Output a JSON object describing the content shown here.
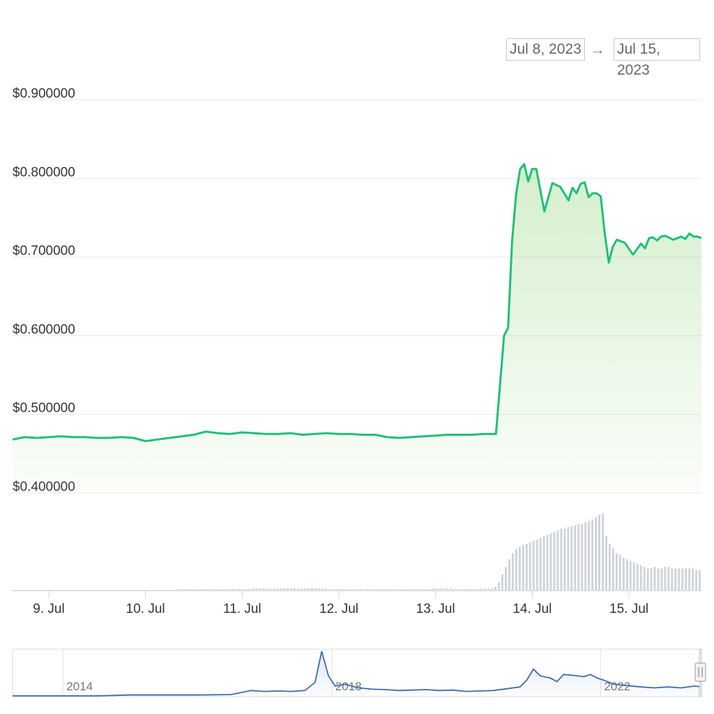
{
  "date_range": {
    "from": "Jul 8, 2023",
    "arrow": "→",
    "to": "Jul 15, 2023"
  },
  "colors": {
    "price_line": "#1fbf79",
    "area_fill": "#8fd47a",
    "volume_bar": "#d0d4da",
    "navigator_line": "#3d6bab",
    "grid": "#e8e8e8"
  },
  "chart_data": [
    {
      "type": "line",
      "yaxis_ticks": [
        "$0.900000",
        "$0.800000",
        "$0.700000",
        "$0.600000",
        "$0.500000",
        "$0.400000"
      ],
      "ylim": [
        0.4,
        0.9
      ],
      "xaxis_ticks": [
        "9. Jul",
        "10. Jul",
        "11. Jul",
        "12. Jul",
        "13. Jul",
        "14. Jul",
        "15. Jul"
      ],
      "x_start": "2023-07-08T15:00",
      "x_end": "2023-07-15T18:00",
      "series": [
        {
          "x": [
            "2023-07-08T15:00",
            "2023-07-08T18:00",
            "2023-07-08T21:00",
            "2023-07-09T00:00",
            "2023-07-09T03:00",
            "2023-07-09T06:00",
            "2023-07-09T09:00",
            "2023-07-09T12:00",
            "2023-07-09T15:00",
            "2023-07-09T18:00",
            "2023-07-09T21:00",
            "2023-07-10T00:00",
            "2023-07-10T03:00",
            "2023-07-10T06:00",
            "2023-07-10T09:00",
            "2023-07-10T12:00",
            "2023-07-10T15:00",
            "2023-07-10T18:00",
            "2023-07-10T21:00",
            "2023-07-11T00:00",
            "2023-07-11T03:00",
            "2023-07-11T06:00",
            "2023-07-11T09:00",
            "2023-07-11T12:00",
            "2023-07-11T15:00",
            "2023-07-11T18:00",
            "2023-07-11T21:00",
            "2023-07-12T00:00",
            "2023-07-12T03:00",
            "2023-07-12T06:00",
            "2023-07-12T09:00",
            "2023-07-12T12:00",
            "2023-07-12T15:00",
            "2023-07-12T18:00",
            "2023-07-12T21:00",
            "2023-07-13T00:00",
            "2023-07-13T03:00",
            "2023-07-13T06:00",
            "2023-07-13T09:00",
            "2023-07-13T12:00",
            "2023-07-13T15:00",
            "2023-07-13T17:00",
            "2023-07-13T18:00",
            "2023-07-13T19:00",
            "2023-07-13T20:00",
            "2023-07-13T21:00",
            "2023-07-13T22:00",
            "2023-07-13T23:00",
            "2023-07-14T00:00",
            "2023-07-14T01:00",
            "2023-07-14T02:00",
            "2023-07-14T03:00",
            "2023-07-14T05:00",
            "2023-07-14T07:00",
            "2023-07-14T09:00",
            "2023-07-14T10:00",
            "2023-07-14T11:00",
            "2023-07-14T12:00",
            "2023-07-14T13:00",
            "2023-07-14T14:00",
            "2023-07-14T15:00",
            "2023-07-14T16:00",
            "2023-07-14T17:00",
            "2023-07-14T18:00",
            "2023-07-14T19:00",
            "2023-07-14T20:00",
            "2023-07-14T21:00",
            "2023-07-14T23:00",
            "2023-07-15T01:00",
            "2023-07-15T03:00",
            "2023-07-15T04:00",
            "2023-07-15T05:00",
            "2023-07-15T06:00",
            "2023-07-15T07:00",
            "2023-07-15T08:00",
            "2023-07-15T09:00",
            "2023-07-15T11:00",
            "2023-07-15T13:00",
            "2023-07-15T14:00",
            "2023-07-15T15:00",
            "2023-07-15T16:00",
            "2023-07-15T17:00",
            "2023-07-15T18:00"
          ],
          "values": [
            0.468,
            0.471,
            0.47,
            0.471,
            0.472,
            0.471,
            0.471,
            0.47,
            0.47,
            0.471,
            0.47,
            0.466,
            0.468,
            0.47,
            0.472,
            0.474,
            0.478,
            0.476,
            0.475,
            0.477,
            0.476,
            0.475,
            0.475,
            0.476,
            0.474,
            0.475,
            0.476,
            0.475,
            0.475,
            0.474,
            0.474,
            0.471,
            0.47,
            0.471,
            0.472,
            0.473,
            0.474,
            0.474,
            0.474,
            0.475,
            0.475,
            0.6,
            0.61,
            0.72,
            0.78,
            0.812,
            0.818,
            0.796,
            0.812,
            0.812,
            0.785,
            0.758,
            0.794,
            0.789,
            0.772,
            0.788,
            0.781,
            0.793,
            0.795,
            0.776,
            0.781,
            0.781,
            0.777,
            0.73,
            0.693,
            0.713,
            0.722,
            0.718,
            0.703,
            0.717,
            0.711,
            0.724,
            0.725,
            0.721,
            0.726,
            0.727,
            0.722,
            0.726,
            0.723,
            0.73,
            0.726,
            0.726,
            0.724
          ]
        }
      ],
      "volume": [
        0,
        0,
        0,
        0,
        0,
        0,
        0,
        0,
        0,
        0,
        0,
        0,
        0,
        0,
        0,
        0,
        0,
        0,
        0,
        0,
        0,
        0,
        0,
        0,
        0,
        0,
        0,
        0,
        0,
        0,
        0,
        0,
        0,
        0,
        0,
        0,
        0,
        0,
        0,
        0,
        0,
        0,
        0,
        0,
        0,
        0,
        0,
        1,
        1,
        1,
        1,
        1,
        1,
        1,
        1,
        1,
        1,
        1,
        1,
        1,
        1,
        1,
        1,
        1,
        1,
        1,
        1,
        1,
        1,
        2,
        2,
        2,
        2,
        2,
        2,
        2,
        2,
        2,
        2,
        2,
        2,
        2,
        2,
        2,
        2,
        2,
        2,
        2,
        2,
        2,
        2,
        1,
        1,
        1,
        1,
        1,
        1,
        1,
        1,
        1,
        1,
        1,
        1,
        1,
        1,
        1,
        1,
        1,
        1,
        1,
        1,
        1,
        1,
        1,
        1,
        1,
        1,
        1,
        1,
        1,
        1,
        2,
        2,
        2,
        2,
        2,
        2,
        1,
        1,
        1,
        1,
        1,
        1,
        1,
        1,
        2,
        2,
        2,
        2,
        4,
        10,
        20,
        30,
        40,
        48,
        53,
        56,
        58,
        60,
        62,
        64,
        66,
        68,
        70,
        72,
        74,
        76,
        78,
        80,
        80,
        82,
        83,
        84,
        86,
        86,
        88,
        90,
        92,
        95,
        98,
        100,
        70,
        60,
        54,
        48,
        46,
        42,
        40,
        38,
        36,
        34,
        32,
        30,
        28,
        28,
        30,
        28,
        28,
        30,
        30,
        28,
        28,
        28,
        28,
        28,
        28,
        28,
        26,
        26
      ],
      "volume_max": 100
    },
    {
      "type": "line",
      "title": "",
      "xaxis_ticks": [
        "2014",
        "2018",
        "2022"
      ],
      "x_range": [
        2013.25,
        2023.5
      ],
      "series": [
        {
          "x": [
            2013.25,
            2014.0,
            2014.5,
            2015.0,
            2015.5,
            2016.0,
            2016.5,
            2016.8,
            2017.0,
            2017.2,
            2017.4,
            2017.6,
            2017.75,
            2017.85,
            2017.95,
            2018.05,
            2018.2,
            2018.4,
            2018.6,
            2018.8,
            2019.0,
            2019.2,
            2019.4,
            2019.6,
            2019.8,
            2020.0,
            2020.2,
            2020.4,
            2020.6,
            2020.8,
            2020.9,
            2021.0,
            2021.1,
            2021.25,
            2021.35,
            2021.45,
            2021.6,
            2021.75,
            2021.85,
            2021.95,
            2022.05,
            2022.2,
            2022.4,
            2022.6,
            2022.8,
            2023.0,
            2023.2,
            2023.4,
            2023.5
          ],
          "values": [
            0.0,
            0.0,
            0.0,
            0.02,
            0.02,
            0.02,
            0.03,
            0.12,
            0.1,
            0.11,
            0.1,
            0.12,
            0.3,
            1.0,
            0.45,
            0.22,
            0.26,
            0.18,
            0.15,
            0.14,
            0.12,
            0.13,
            0.14,
            0.12,
            0.13,
            0.1,
            0.11,
            0.12,
            0.16,
            0.2,
            0.35,
            0.6,
            0.45,
            0.4,
            0.32,
            0.48,
            0.46,
            0.43,
            0.48,
            0.4,
            0.35,
            0.26,
            0.23,
            0.2,
            0.18,
            0.2,
            0.18,
            0.22,
            0.2
          ]
        }
      ]
    }
  ]
}
